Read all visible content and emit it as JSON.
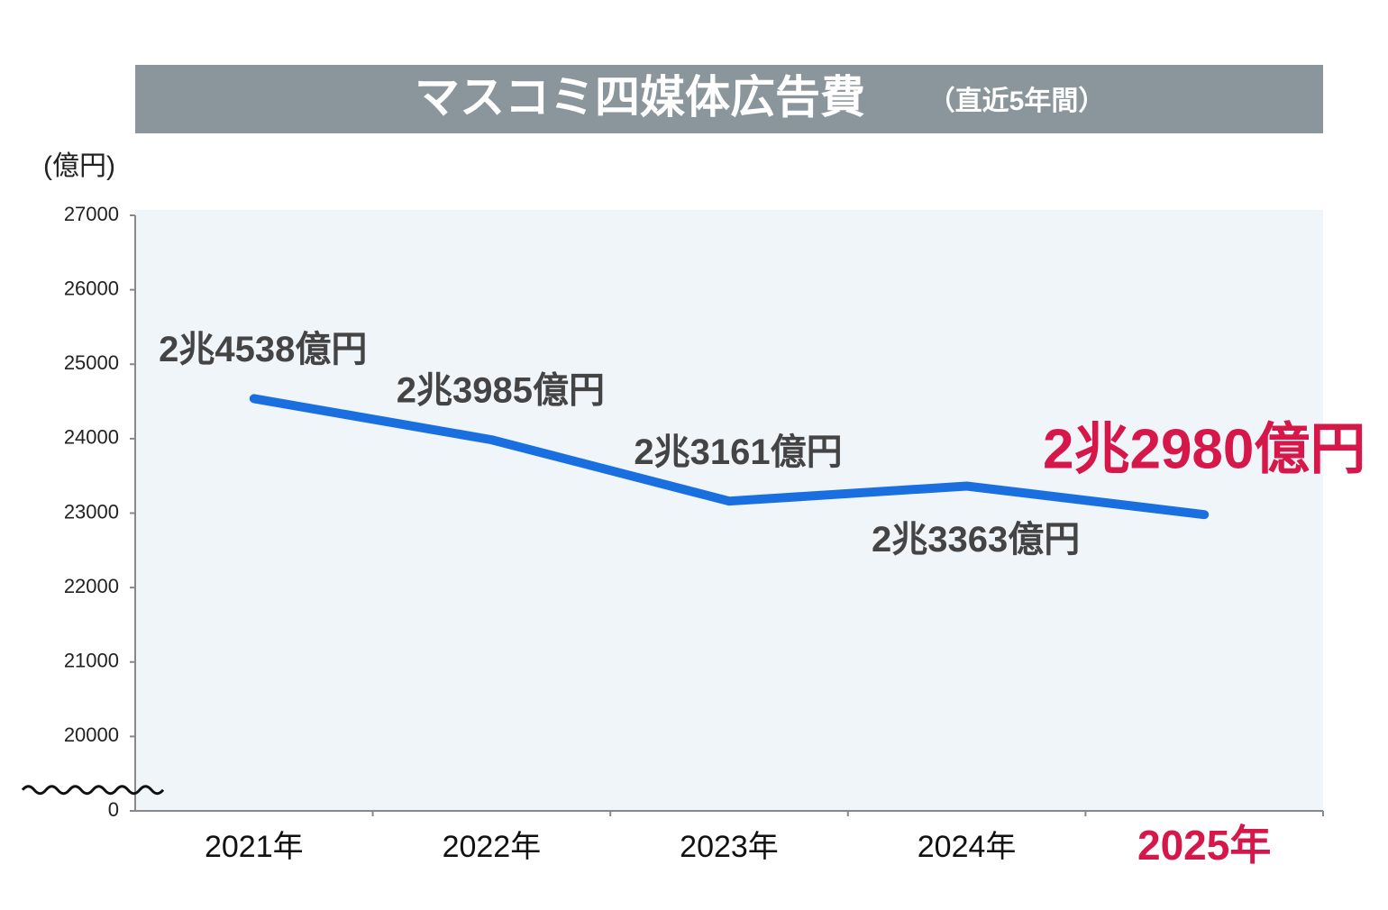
{
  "chart_data": {
    "type": "line",
    "title": "マスコミ四媒体広告費",
    "subtitle": "（直近5年間）",
    "y_label": "(億円)",
    "categories": [
      "2021年",
      "2022年",
      "2023年",
      "2024年",
      "2025年"
    ],
    "category_colors": [
      "#111111",
      "#111111",
      "#111111",
      "#111111",
      "#d6174a"
    ],
    "series": [
      {
        "name": "マスコミ四媒体広告費",
        "color": "#1a6fe0",
        "values": [
          24538,
          23985,
          23161,
          23363,
          22980
        ],
        "value_labels": [
          "2兆4538億円",
          "2兆3985億円",
          "2兆3161億円",
          "2兆3363億円",
          "2兆2980億円"
        ]
      }
    ],
    "ylim": [
      0,
      27000
    ],
    "yticks": [
      0,
      20000,
      21000,
      22000,
      23000,
      24000,
      25000,
      26000,
      27000
    ],
    "broken_axis": true,
    "grid": false
  }
}
